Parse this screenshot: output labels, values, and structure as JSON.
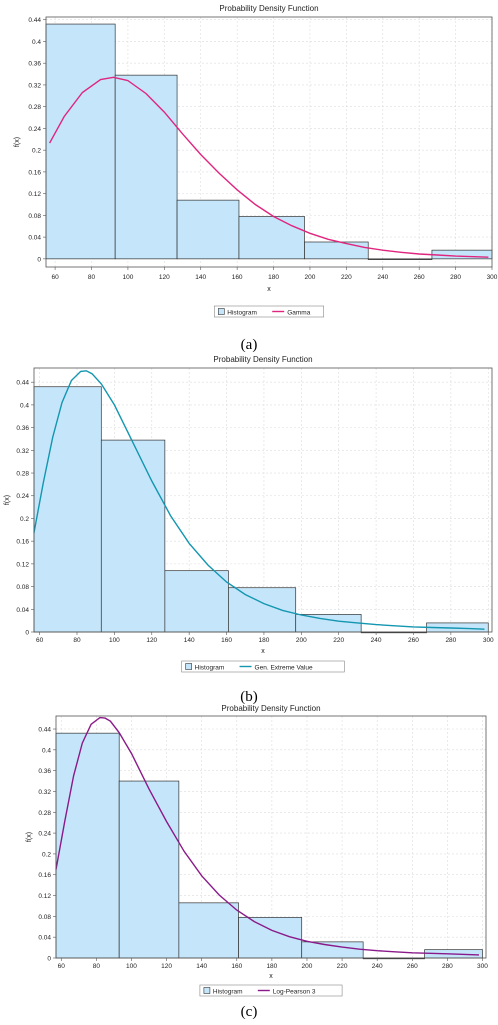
{
  "chart_data": [
    {
      "type": "bar",
      "title": "Probability Density Function",
      "xlabel": "x",
      "ylabel": "f(x)",
      "xlim": [
        55,
        300
      ],
      "ylim": [
        -0.015,
        0.445
      ],
      "xticks": [
        60,
        80,
        100,
        120,
        140,
        160,
        180,
        200,
        220,
        240,
        260,
        280,
        300
      ],
      "yticks": [
        0,
        0.04,
        0.08,
        0.12,
        0.16,
        0.2,
        0.24,
        0.28,
        0.32,
        0.36,
        0.4,
        0.44
      ],
      "bin_edges": [
        55,
        93,
        127,
        161,
        197,
        232,
        267,
        300
      ],
      "values": [
        0.432,
        0.338,
        0.108,
        0.078,
        0.031,
        0.0,
        0.016
      ],
      "curve": {
        "name": "Gamma",
        "color": "#e0257f",
        "x": [
          57,
          65,
          75,
          85,
          92,
          100,
          110,
          120,
          130,
          140,
          150,
          160,
          170,
          180,
          190,
          200,
          210,
          220,
          230,
          240,
          250,
          260,
          270,
          280,
          290,
          298
        ],
        "y": [
          0.213,
          0.262,
          0.306,
          0.33,
          0.334,
          0.328,
          0.304,
          0.27,
          0.23,
          0.192,
          0.158,
          0.127,
          0.1,
          0.078,
          0.061,
          0.047,
          0.036,
          0.028,
          0.021,
          0.016,
          0.012,
          0.009,
          0.007,
          0.005,
          0.004,
          0.003
        ]
      },
      "legend": {
        "placement": "bottom-center",
        "items": [
          "Histogram",
          "Gamma"
        ]
      },
      "caption": "(a)"
    },
    {
      "type": "bar",
      "title": "Probability Density Function",
      "xlabel": "x",
      "ylabel": "f(x)",
      "xlim": [
        57,
        302
      ],
      "ylim": [
        0,
        0.465
      ],
      "xticks": [
        60,
        80,
        100,
        120,
        140,
        160,
        180,
        200,
        220,
        240,
        260,
        280,
        300
      ],
      "yticks": [
        0,
        0.04,
        0.08,
        0.12,
        0.16,
        0.2,
        0.24,
        0.28,
        0.32,
        0.36,
        0.4,
        0.44
      ],
      "bin_edges": [
        57,
        93,
        127,
        161,
        197,
        232,
        267,
        300
      ],
      "values": [
        0.432,
        0.338,
        0.108,
        0.078,
        0.031,
        0.0,
        0.016
      ],
      "curve": {
        "name": "Gen. Extreme Value",
        "color": "#1396b0",
        "x": [
          57,
          62,
          67,
          72,
          77,
          82,
          85,
          88,
          93,
          100,
          110,
          120,
          130,
          140,
          150,
          160,
          170,
          180,
          190,
          200,
          210,
          220,
          230,
          240,
          250,
          260,
          270,
          280,
          290,
          298
        ],
        "y": [
          0.175,
          0.263,
          0.343,
          0.404,
          0.443,
          0.459,
          0.46,
          0.455,
          0.437,
          0.4,
          0.333,
          0.266,
          0.205,
          0.156,
          0.118,
          0.088,
          0.066,
          0.05,
          0.038,
          0.03,
          0.024,
          0.019,
          0.016,
          0.013,
          0.011,
          0.009,
          0.008,
          0.007,
          0.006,
          0.005
        ]
      },
      "legend": {
        "placement": "bottom-center",
        "items": [
          "Histogram",
          "Gen. Extreme Value"
        ]
      },
      "caption": "(b)"
    },
    {
      "type": "bar",
      "title": "Probability Density Function",
      "xlabel": "x",
      "ylabel": "f(x)",
      "xlim": [
        57,
        302
      ],
      "ylim": [
        0,
        0.465
      ],
      "xticks": [
        60,
        80,
        100,
        120,
        140,
        160,
        180,
        200,
        220,
        240,
        260,
        280,
        300
      ],
      "yticks": [
        0,
        0.04,
        0.08,
        0.12,
        0.16,
        0.2,
        0.24,
        0.28,
        0.32,
        0.36,
        0.4,
        0.44
      ],
      "bin_edges": [
        57,
        93,
        127,
        161,
        197,
        232,
        267,
        300
      ],
      "values": [
        0.432,
        0.34,
        0.106,
        0.078,
        0.031,
        0.0,
        0.016
      ],
      "curve": {
        "name": "Log-Pearson 3",
        "color": "#8a1a8a",
        "x": [
          57,
          62,
          67,
          72,
          77,
          82,
          85,
          88,
          93,
          100,
          110,
          120,
          130,
          140,
          150,
          160,
          170,
          180,
          190,
          200,
          210,
          220,
          230,
          240,
          250,
          260,
          270,
          280,
          290,
          298
        ],
        "y": [
          0.17,
          0.263,
          0.35,
          0.413,
          0.449,
          0.462,
          0.461,
          0.455,
          0.433,
          0.393,
          0.325,
          0.262,
          0.205,
          0.158,
          0.121,
          0.092,
          0.07,
          0.053,
          0.041,
          0.032,
          0.026,
          0.021,
          0.017,
          0.014,
          0.012,
          0.01,
          0.009,
          0.008,
          0.007,
          0.006
        ]
      },
      "legend": {
        "placement": "bottom-center",
        "items": [
          "Histogram",
          "Log-Pearson 3"
        ]
      },
      "caption": "(c)"
    }
  ]
}
